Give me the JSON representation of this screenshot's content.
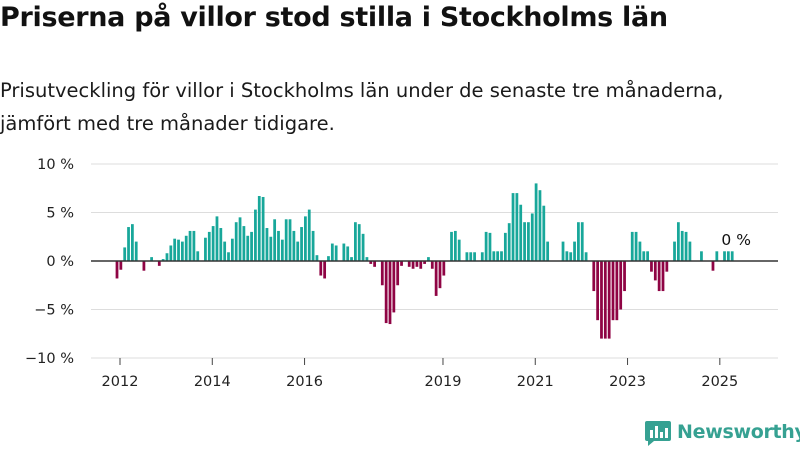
{
  "title": "Priserna på villor stod stilla i Stockholms län",
  "subtitle_lines": [
    "Prisutveckling för villor i Stockholms län under de senaste tre månaderna,",
    "jämfört med tre månader tidigare."
  ],
  "brand": "Newsworthy",
  "colors": {
    "positive": "#18a79a",
    "negative": "#8f0444",
    "grid": "#dddddd",
    "zero": "#333333",
    "brand": "#36a192"
  },
  "chart_data": {
    "type": "bar",
    "ylim": [
      -10,
      10
    ],
    "y_ticks": [
      10,
      5,
      0,
      -5,
      -10
    ],
    "y_tick_labels": [
      "10 %",
      "5 %",
      "0 %",
      "−5 %",
      "−10 %"
    ],
    "x_start": "2012-01",
    "x_ticks": [
      "2012",
      "2014",
      "2016",
      "2019",
      "2021",
      "2023",
      "2025"
    ],
    "annotation": "0 %",
    "values": [
      -1.8,
      -0.9,
      1.4,
      3.5,
      3.8,
      2.0,
      0.0,
      -1.0,
      0.0,
      0.4,
      0.0,
      -0.5,
      0.2,
      0.8,
      1.6,
      2.3,
      2.2,
      2.0,
      2.6,
      3.1,
      3.1,
      1.0,
      0.0,
      2.4,
      3.0,
      3.6,
      4.6,
      3.4,
      2.0,
      0.9,
      2.3,
      4.0,
      4.5,
      3.6,
      2.6,
      3.0,
      5.3,
      6.7,
      6.6,
      3.4,
      2.5,
      4.3,
      3.1,
      2.2,
      4.3,
      4.3,
      3.1,
      2.0,
      3.5,
      4.6,
      5.3,
      3.1,
      0.6,
      -1.5,
      -1.8,
      0.5,
      1.8,
      1.6,
      0.0,
      1.8,
      1.5,
      0.4,
      4.0,
      3.8,
      2.8,
      0.4,
      -0.3,
      -0.6,
      0.0,
      -2.5,
      -6.4,
      -6.5,
      -5.3,
      -2.5,
      -0.5,
      0.0,
      -0.6,
      -0.8,
      -0.6,
      -0.8,
      -0.3,
      0.4,
      -0.8,
      -3.6,
      -2.8,
      -1.5,
      0.0,
      3.0,
      3.1,
      2.2,
      0.0,
      0.9,
      0.9,
      0.9,
      0.0,
      0.9,
      3.0,
      2.9,
      1.0,
      1.0,
      1.0,
      2.9,
      3.9,
      7.0,
      7.0,
      5.8,
      4.0,
      4.0,
      4.9,
      8.0,
      7.3,
      5.7,
      2.0,
      0.0,
      0.0,
      0.0,
      2.0,
      1.0,
      0.9,
      2.0,
      4.0,
      4.0,
      0.9,
      0.0,
      -3.1,
      -6.1,
      -8.0,
      -8.0,
      -8.0,
      -6.1,
      -6.1,
      -5.0,
      -3.1,
      0.0,
      3.0,
      3.0,
      2.0,
      1.0,
      1.0,
      -1.1,
      -2.0,
      -3.1,
      -3.1,
      -1.1,
      0.0,
      2.0,
      4.0,
      3.1,
      3.0,
      2.0,
      0.0,
      0.0,
      1.0,
      0.0,
      0.0,
      -1.0,
      1.0,
      0.0,
      1.0,
      1.0,
      1.0
    ]
  }
}
